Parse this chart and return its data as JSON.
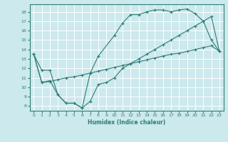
{
  "xlabel": "Humidex (Indice chaleur)",
  "background_color": "#cce9ed",
  "grid_color": "#ffffff",
  "line_color": "#2d7d74",
  "xlim": [
    -0.5,
    23.5
  ],
  "ylim": [
    7.5,
    18.8
  ],
  "xticks": [
    0,
    1,
    2,
    3,
    4,
    5,
    6,
    7,
    8,
    9,
    10,
    11,
    12,
    13,
    14,
    15,
    16,
    17,
    18,
    19,
    20,
    21,
    22,
    23
  ],
  "yticks": [
    8,
    9,
    10,
    11,
    12,
    13,
    14,
    15,
    16,
    17,
    18
  ],
  "line1_x": [
    0,
    1,
    2,
    3,
    4,
    5,
    6,
    7,
    8,
    10,
    11,
    12,
    13,
    14,
    15,
    16,
    17,
    18,
    19,
    20,
    21,
    22,
    23
  ],
  "line1_y": [
    13.5,
    11.8,
    11.8,
    9.2,
    8.3,
    8.3,
    7.8,
    11.5,
    13.3,
    15.5,
    16.8,
    17.7,
    17.7,
    18.0,
    18.2,
    18.2,
    18.0,
    18.2,
    18.3,
    17.8,
    17.0,
    15.0,
    13.8
  ],
  "line2_x": [
    0,
    1,
    2,
    3,
    4,
    5,
    6,
    7,
    8,
    9,
    10,
    11,
    12,
    13,
    14,
    15,
    16,
    17,
    18,
    19,
    20,
    21,
    22,
    23
  ],
  "line2_y": [
    13.5,
    10.5,
    10.7,
    9.2,
    8.3,
    8.3,
    7.8,
    8.5,
    10.3,
    10.5,
    11.0,
    12.0,
    12.5,
    13.0,
    13.5,
    14.0,
    14.5,
    15.0,
    15.5,
    16.0,
    16.5,
    17.0,
    17.5,
    13.8
  ],
  "line3_x": [
    0,
    1,
    2,
    3,
    4,
    5,
    6,
    7,
    8,
    9,
    10,
    11,
    12,
    13,
    14,
    15,
    16,
    17,
    18,
    19,
    20,
    21,
    22,
    23
  ],
  "line3_y": [
    13.5,
    10.5,
    10.6,
    10.8,
    11.0,
    11.1,
    11.3,
    11.5,
    11.7,
    11.9,
    12.1,
    12.3,
    12.5,
    12.7,
    12.9,
    13.1,
    13.3,
    13.5,
    13.6,
    13.8,
    14.0,
    14.2,
    14.4,
    13.8
  ]
}
